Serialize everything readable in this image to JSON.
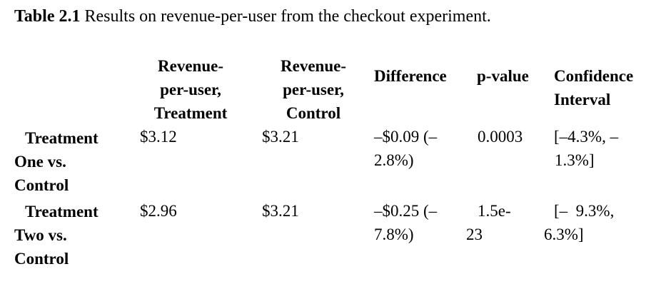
{
  "caption": {
    "label": "Table 2.1",
    "text": "Results on revenue-per-user from the checkout experiment."
  },
  "table": {
    "headers": [
      [
        "Revenue-",
        "per-user,",
        "Treatment"
      ],
      [
        "Revenue-",
        "per-user,",
        "Control"
      ],
      [
        "Difference"
      ],
      [
        "p-value"
      ],
      [
        "Confidence",
        "Interval"
      ]
    ],
    "rows": [
      {
        "label": [
          "Treatment",
          "One vs.",
          "Control"
        ],
        "revenue_treatment": "$3.12",
        "revenue_control": "$3.21",
        "difference": [
          "–$0.09 (–",
          "2.8%)"
        ],
        "p_value": [
          "0.0003"
        ],
        "confidence_interval": [
          "[–4.3%, –",
          "1.3%]"
        ]
      },
      {
        "label": [
          "Treatment",
          "Two vs.",
          "Control"
        ],
        "revenue_treatment": "$2.96",
        "revenue_control": "$3.21",
        "difference": [
          "–$0.25 (–",
          "7.8%)"
        ],
        "p_value": [
          "1.5e-",
          "23"
        ],
        "confidence_interval": [
          "[–  9.3%,",
          "6.3%]"
        ]
      }
    ]
  }
}
